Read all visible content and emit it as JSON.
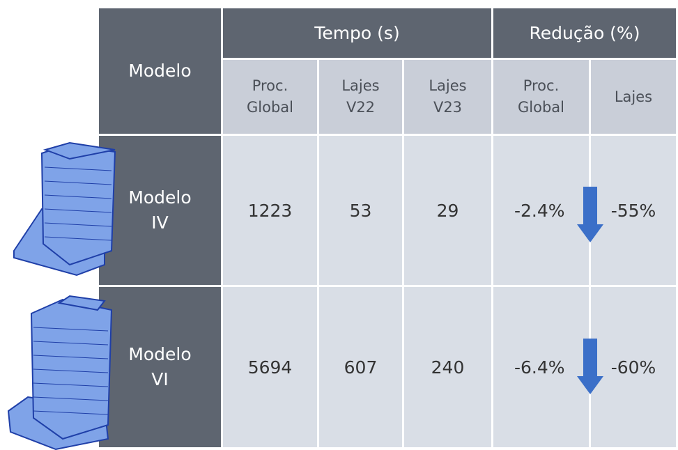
{
  "header": {
    "model": "Modelo",
    "time": "Tempo (s)",
    "reduction": "Redução (%)",
    "subheaders": [
      [
        "Proc.",
        "Global"
      ],
      [
        "Lajes",
        "V22"
      ],
      [
        "Lajes",
        "V23"
      ],
      [
        "Proc.",
        "Global"
      ],
      [
        "Lajes"
      ]
    ]
  },
  "table": {
    "rows": [
      {
        "model": [
          "Modelo",
          "IV"
        ],
        "cells": [
          "1223",
          "53",
          "29",
          "-2.4%",
          "-55%"
        ]
      },
      {
        "model": [
          "Modelo",
          "VI"
        ],
        "cells": [
          "5694",
          "607",
          "240",
          "-6.4%",
          "-60%"
        ]
      }
    ]
  }
}
